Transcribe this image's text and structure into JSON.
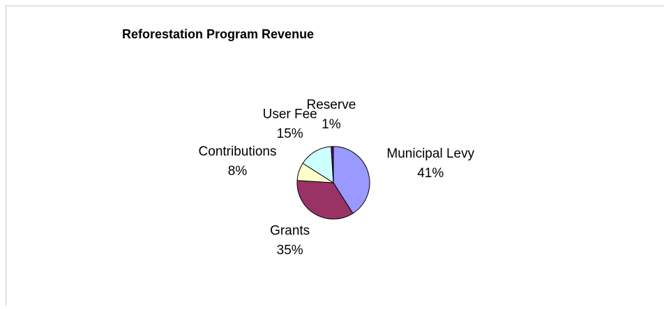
{
  "chart_data": {
    "type": "pie",
    "title": "Reforestation Program Revenue",
    "categories": [
      "Municipal Levy",
      "Grants",
      "Contributions",
      "User Fee",
      "Reserve"
    ],
    "values": [
      41,
      35,
      8,
      15,
      1
    ],
    "value_labels": [
      "41%",
      "35%",
      "8%",
      "15%",
      "1%"
    ],
    "colors": [
      "#9999ff",
      "#993366",
      "#ffffcc",
      "#ccffff",
      "#660066"
    ]
  }
}
